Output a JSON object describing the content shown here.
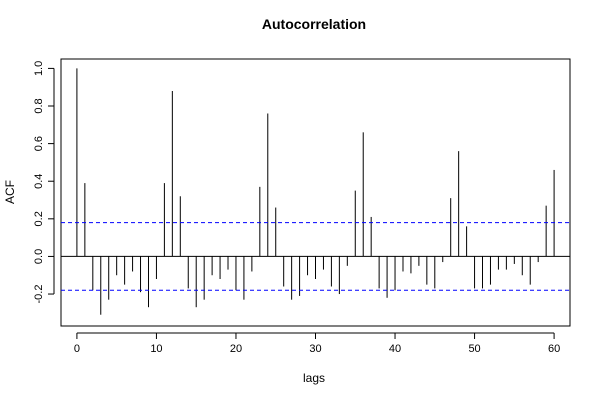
{
  "chart_data": {
    "type": "bar",
    "title": "Autocorrelation",
    "xlabel": "lags",
    "ylabel": "ACF",
    "xlim": [
      -2,
      62
    ],
    "ylim": [
      -0.37,
      1.05
    ],
    "x_ticks": [
      0,
      10,
      20,
      30,
      40,
      50,
      60
    ],
    "y_ticks": [
      -0.2,
      0.0,
      0.2,
      0.4,
      0.6,
      0.8,
      1.0
    ],
    "x_tick_labels": [
      "0",
      "10",
      "20",
      "30",
      "40",
      "50",
      "60"
    ],
    "y_tick_labels": [
      "-0.2",
      "0.0",
      "0.2",
      "0.4",
      "0.6",
      "0.8",
      "1.0"
    ],
    "confidence_bounds": [
      0.18,
      -0.18
    ],
    "confidence_color": "#0000ff",
    "bar_color": "#000000",
    "lags": [
      0,
      1,
      2,
      3,
      4,
      5,
      6,
      7,
      8,
      9,
      10,
      11,
      12,
      13,
      14,
      15,
      16,
      17,
      18,
      19,
      20,
      21,
      22,
      23,
      24,
      25,
      26,
      27,
      28,
      29,
      30,
      31,
      32,
      33,
      34,
      35,
      36,
      37,
      38,
      39,
      40,
      41,
      42,
      43,
      44,
      45,
      46,
      47,
      48,
      49,
      50,
      51,
      52,
      53,
      54,
      55,
      56,
      57,
      58,
      59,
      60
    ],
    "values": [
      1.0,
      0.39,
      -0.18,
      -0.31,
      -0.23,
      -0.1,
      -0.15,
      -0.08,
      -0.19,
      -0.27,
      -0.12,
      0.39,
      0.88,
      0.32,
      -0.17,
      -0.27,
      -0.23,
      -0.1,
      -0.12,
      -0.07,
      -0.18,
      -0.23,
      -0.08,
      0.37,
      0.76,
      0.26,
      -0.16,
      -0.23,
      -0.21,
      -0.1,
      -0.12,
      -0.07,
      -0.16,
      -0.2,
      -0.05,
      0.35,
      0.66,
      0.21,
      -0.17,
      -0.22,
      -0.18,
      -0.08,
      -0.09,
      -0.05,
      -0.15,
      -0.17,
      -0.03,
      0.31,
      0.56,
      0.16,
      -0.17,
      -0.17,
      -0.15,
      -0.07,
      -0.07,
      -0.04,
      -0.1,
      -0.15,
      -0.03,
      0.27,
      0.46
    ]
  }
}
